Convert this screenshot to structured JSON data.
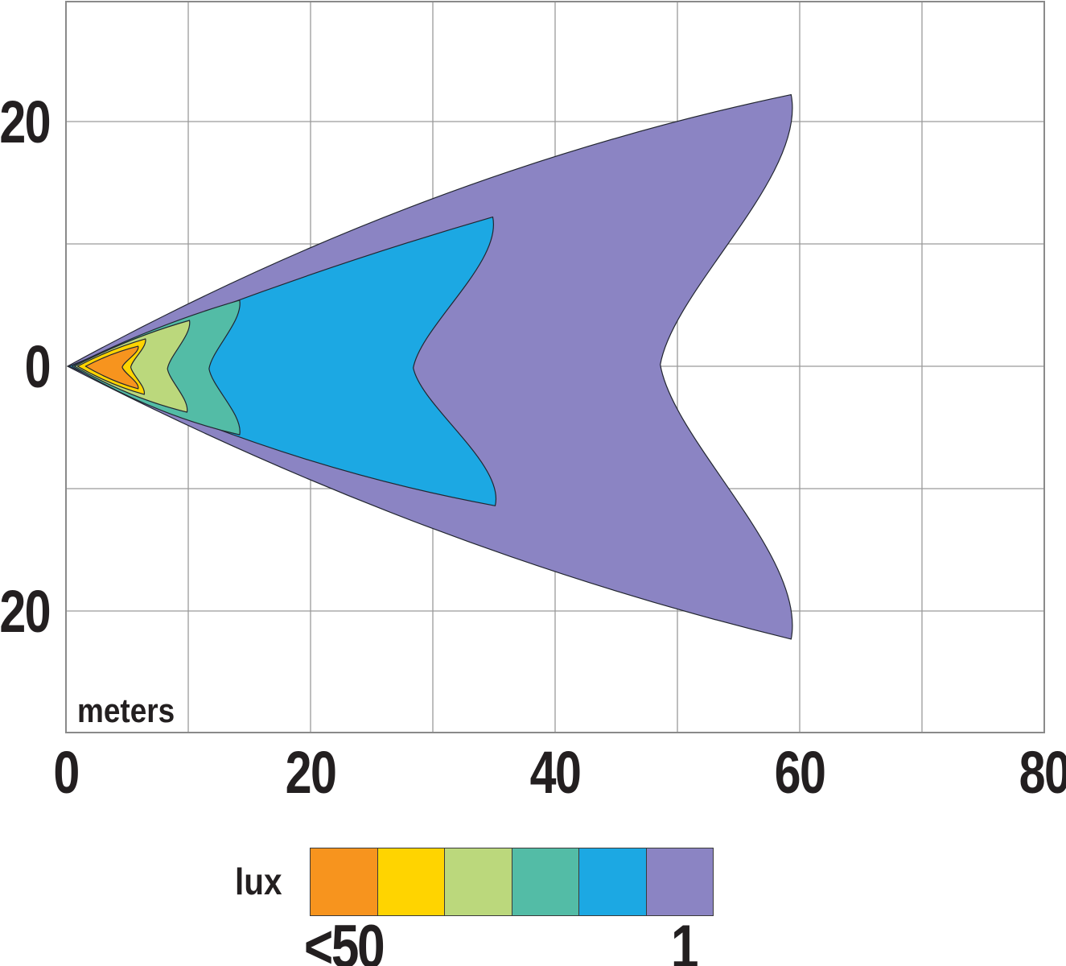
{
  "chart_data": {
    "type": "contour",
    "description": "Isolux light-beam pattern diagram on a meter grid",
    "x_axis": {
      "label_text": "meters",
      "ticks": [
        {
          "v": 0,
          "label": "0"
        },
        {
          "v": 20,
          "label": "20"
        },
        {
          "v": 40,
          "label": "40"
        },
        {
          "v": 60,
          "label": "60"
        },
        {
          "v": 80,
          "label": "80"
        }
      ],
      "range_m": [
        0,
        80
      ],
      "gridline_step_m": 10
    },
    "y_axis": {
      "ticks": [
        {
          "v": 20,
          "label": "20"
        },
        {
          "v": 0,
          "label": "0"
        },
        {
          "v": -20,
          "label": "20"
        }
      ],
      "range_m": [
        -29.9,
        29.8
      ],
      "gridline_step_m": 10
    },
    "grid": true,
    "grid_color": "#9a9a9a",
    "border_color": "#8a8a8a",
    "text_color": "#231F20",
    "contour_outline_color": "#222630",
    "contours": [
      {
        "id": "purple-1lux",
        "color": "#8B84C3",
        "apex_x_m": 0.13,
        "tip_top_m": [
          59.3,
          22.2
        ],
        "notch_m": [
          48.6,
          0.13
        ],
        "tip_bottom_m": [
          59.3,
          -22.3
        ],
        "bow_top": 0.15,
        "bow_bottom": 0.12
      },
      {
        "id": "blue",
        "color": "#1CA8E3",
        "apex_x_m": 0.26,
        "tip_top_m": [
          34.9,
          12.2
        ],
        "notch_m": [
          28.4,
          -0.13
        ],
        "tip_bottom_m": [
          35.1,
          -11.4
        ],
        "bow_top": 0.06,
        "bow_bottom": 0.15
      },
      {
        "id": "teal",
        "color": "#53BCA6",
        "apex_x_m": 0.5,
        "tip_top_m": [
          14.2,
          5.4
        ],
        "notch_m": [
          11.7,
          -0.2
        ],
        "tip_bottom_m": [
          14.2,
          -5.6
        ],
        "bow_top": 0.09,
        "bow_bottom": 0.15
      },
      {
        "id": "yellow-green",
        "color": "#BBD87C",
        "apex_x_m": 0.7,
        "tip_top_m": [
          10.1,
          3.75
        ],
        "notch_m": [
          8.3,
          -0.2
        ],
        "tip_bottom_m": [
          9.9,
          -3.75
        ],
        "bow_top": 0.1,
        "bow_bottom": 0.14
      },
      {
        "id": "yellow",
        "color": "#FFD400",
        "apex_x_m": 0.95,
        "tip_top_m": [
          6.5,
          2.24
        ],
        "notch_m": [
          5.3,
          -0.07
        ],
        "tip_bottom_m": [
          6.4,
          -2.3
        ],
        "bow_top": 0.1,
        "bow_bottom": 0.12
      },
      {
        "id": "orange-50lux",
        "color": "#F7941E",
        "apex_x_m": 1.6,
        "tip_top_m": [
          5.9,
          1.64
        ],
        "notch_m": [
          4.6,
          -0.07
        ],
        "tip_bottom_m": [
          5.9,
          -1.84
        ],
        "bow_top": 0.12,
        "bow_bottom": 0.12
      }
    ],
    "legend": {
      "unit_label": "lux",
      "first_label": "<50",
      "last_label": "1",
      "swatch_colors": [
        "#F7941E",
        "#FFD400",
        "#BBD87C",
        "#53BCA6",
        "#1CA8E3",
        "#8B84C3"
      ]
    }
  }
}
